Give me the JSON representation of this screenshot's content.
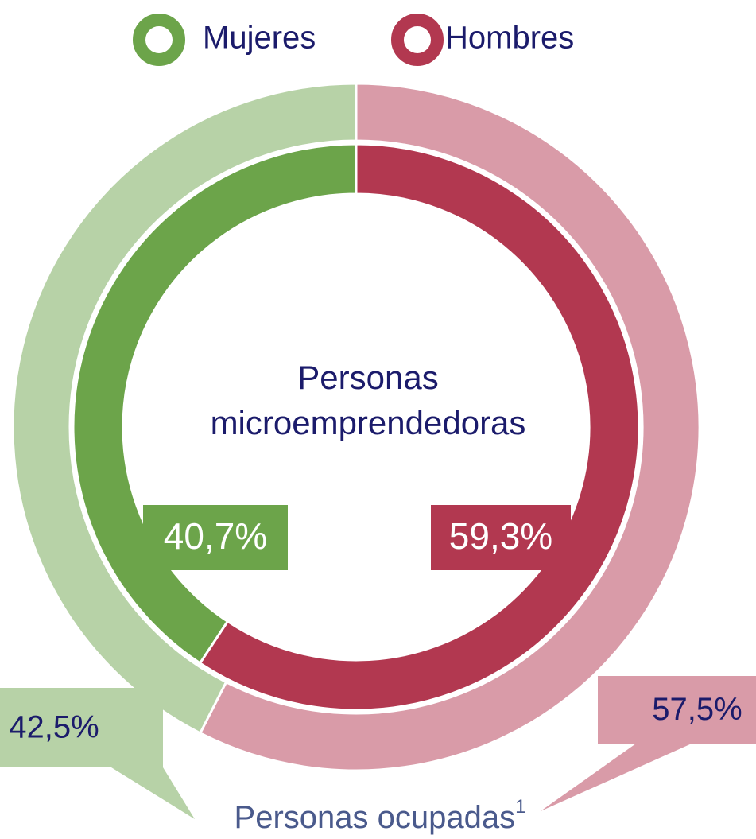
{
  "chart_data": {
    "type": "donut",
    "categories": [
      "Mujeres",
      "Hombres"
    ],
    "colors": [
      "#6ca44a",
      "#b23850"
    ],
    "series": [
      {
        "label": [
          "Personas",
          "microemprendedoras"
        ],
        "values": [
          40.7,
          59.3
        ],
        "value_labels": [
          "40,7%",
          "59,3%"
        ],
        "colors": [
          "#6ca44a",
          "#b23850"
        ]
      },
      {
        "label": "Personas ocupadas",
        "footnote": "1",
        "values": [
          42.5,
          57.5
        ],
        "value_labels": [
          "42,5%",
          "57,5%"
        ],
        "colors": [
          "#b7d2a7",
          "#d99ba8"
        ]
      }
    ]
  }
}
